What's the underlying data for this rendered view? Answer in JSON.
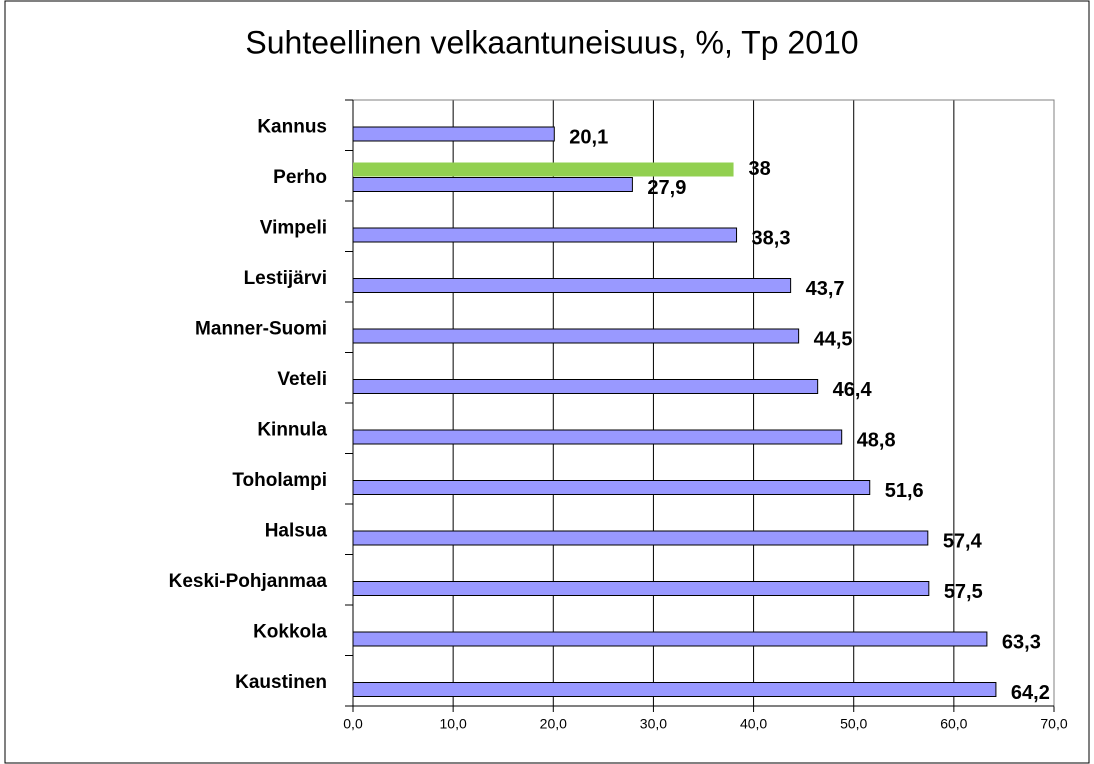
{
  "chart_data": {
    "type": "bar",
    "orientation": "horizontal",
    "title": "Suhteellinen   velkaantuneisuus, %, Tp 2010",
    "categories": [
      "Kannus",
      "Perho",
      "Vimpeli",
      "Lestijärvi",
      "Manner-Suomi",
      "Veteli",
      "Kinnula",
      "Toholampi",
      "Halsua",
      "Keski-Pohjanmaa",
      "Kokkola",
      "Kaustinen"
    ],
    "series": [
      {
        "color": "#92d050",
        "values": [
          null,
          38,
          null,
          null,
          null,
          null,
          null,
          null,
          null,
          null,
          null,
          null
        ]
      },
      {
        "color": "#9999ff",
        "values": [
          20.1,
          27.9,
          38.3,
          43.7,
          44.5,
          46.4,
          48.8,
          51.6,
          57.4,
          57.5,
          63.3,
          64.2
        ],
        "value_labels": [
          "20,1",
          "27,9",
          "38,3",
          "43,7",
          "44,5",
          "46,4",
          "48,8",
          "51,6",
          "57,4",
          "57,5",
          "63,3",
          "64,2"
        ]
      }
    ],
    "xlim": [
      0,
      70
    ],
    "xticks": [
      {
        "value": 0,
        "label": "0,0"
      },
      {
        "value": 10,
        "label": "10,0"
      },
      {
        "value": 20,
        "label": "20,0"
      },
      {
        "value": 30,
        "label": "30,0"
      },
      {
        "value": 40,
        "label": "40,0"
      },
      {
        "value": 50,
        "label": "50,0"
      },
      {
        "value": 60,
        "label": "60,0"
      },
      {
        "value": 70,
        "label": "70,0"
      }
    ],
    "grid": true
  }
}
